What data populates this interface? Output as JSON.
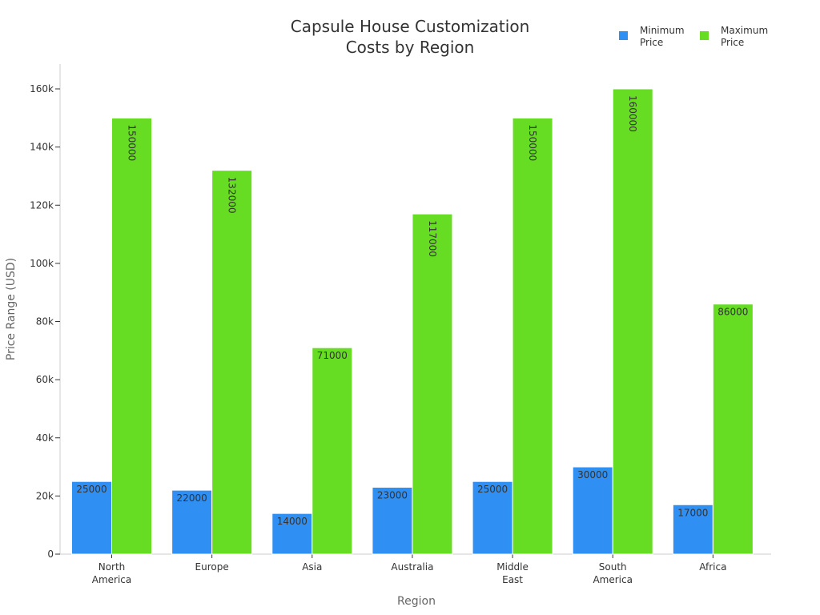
{
  "chart_data": {
    "type": "bar",
    "title": [
      "Capsule House Customization",
      "Costs by Region"
    ],
    "xlabel": "Region",
    "ylabel": "Price Range (USD)",
    "categories": [
      [
        "North",
        "America"
      ],
      [
        "Europe"
      ],
      [
        "Asia"
      ],
      [
        "Australia"
      ],
      [
        "Middle",
        "East"
      ],
      [
        "South",
        "America"
      ],
      [
        "Africa"
      ]
    ],
    "series": [
      {
        "name": [
          "Minimum",
          "Price"
        ],
        "color": "#2f8ff2",
        "values": [
          25000,
          22000,
          14000,
          23000,
          25000,
          30000,
          17000
        ]
      },
      {
        "name": [
          "Maximum",
          "Price"
        ],
        "color": "#66dd22",
        "values": [
          150000,
          132000,
          71000,
          117000,
          150000,
          160000,
          86000
        ]
      }
    ],
    "ylim": [
      0,
      168000
    ],
    "yticks": [
      0,
      20000,
      40000,
      60000,
      80000,
      100000,
      120000,
      140000,
      160000
    ],
    "ytick_labels": [
      "0",
      "20k",
      "40k",
      "60k",
      "80k",
      "100k",
      "120k",
      "140k",
      "160k"
    ],
    "grid": false,
    "legend_position": "top-right"
  }
}
